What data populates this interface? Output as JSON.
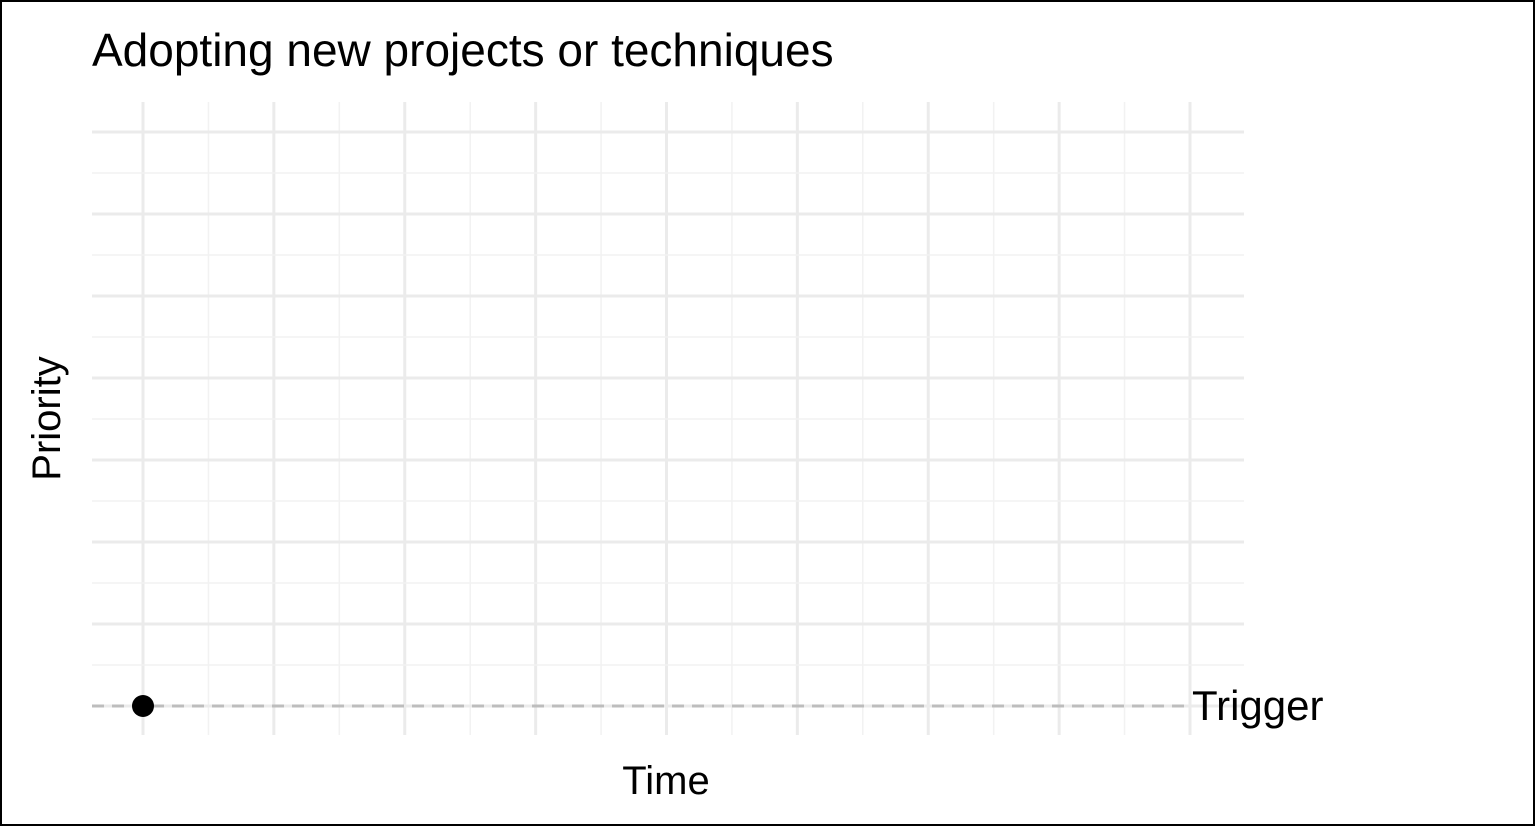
{
  "chart_data": {
    "type": "scatter",
    "title": "Adopting new projects or techniques",
    "xlabel": "Time",
    "ylabel": "Priority",
    "xlim": [
      0,
      8
    ],
    "ylim": [
      0,
      7
    ],
    "grid": true,
    "series": [
      {
        "points": [
          {
            "x": 0,
            "y": 0
          }
        ]
      }
    ],
    "reference_lines": [
      {
        "label": "Trigger",
        "y": 0,
        "style": "dashed"
      }
    ],
    "colors": {
      "point": "#000000",
      "reference_line": "#bdbdbd",
      "grid_major": "#ebebeb",
      "grid_minor": "#f2f2f2"
    }
  }
}
